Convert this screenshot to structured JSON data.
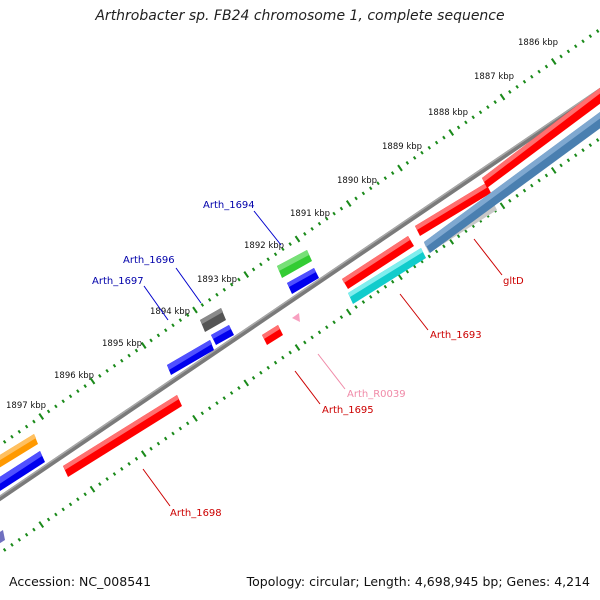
{
  "title": "Arthrobacter sp. FB24 chromosome 1, complete sequence",
  "footer": {
    "accession": "Accession: NC_008541",
    "stats": "Topology: circular; Length: 4,698,945 bp; Genes: 4,214"
  },
  "ticks": [
    "1886 kbp",
    "1887 kbp",
    "1888 kbp",
    "1889 kbp",
    "1890 kbp",
    "1891 kbp",
    "1892 kbp",
    "1893 kbp",
    "1894 kbp",
    "1895 kbp",
    "1896 kbp",
    "1897 kbp"
  ],
  "genes": [
    {
      "label": "Arth_1694",
      "color": "#0000aa"
    },
    {
      "label": "Arth_1696",
      "color": "#0000aa"
    },
    {
      "label": "Arth_1697",
      "color": "#0000aa"
    },
    {
      "label": "gltD",
      "color": "#cc0000"
    },
    {
      "label": "Arth_1693",
      "color": "#cc0000"
    },
    {
      "label": "Arth_R0039",
      "color": "#f08aa8"
    },
    {
      "label": "Arth_1695",
      "color": "#cc0000"
    },
    {
      "label": "Arth_1698",
      "color": "#cc0000"
    }
  ],
  "colors": {
    "red": "#ff0000",
    "blue": "#0000ee",
    "green": "#33cc33",
    "gray": "#555555",
    "orange": "#ff9900",
    "cyan": "#11cccc",
    "steel": "#4a7fb0",
    "pink": "#f8a0c0",
    "backbone": "#808080",
    "tick": "#1a8a1a"
  }
}
